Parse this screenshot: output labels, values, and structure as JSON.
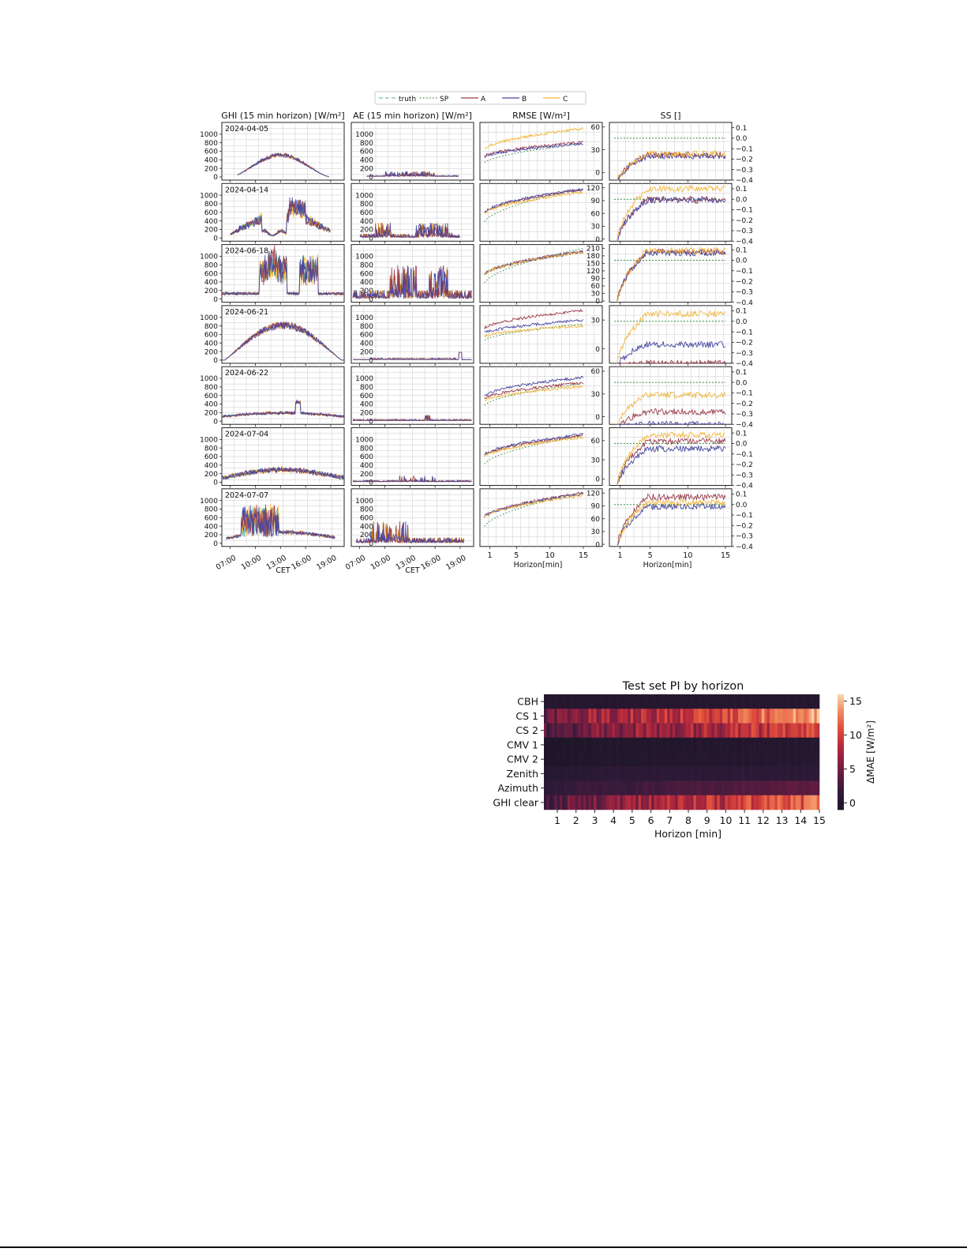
{
  "chart_data": [
    {
      "type": "line",
      "legend": {
        "placement": "top-center",
        "entries": [
          {
            "name": "truth",
            "color": "#7fb8b0",
            "style": "dashed"
          },
          {
            "name": "SP",
            "color": "#2e8b3e",
            "style": "dotted"
          },
          {
            "name": "A",
            "color": "#9b3d4c",
            "style": "solid"
          },
          {
            "name": "B",
            "color": "#4848a0",
            "style": "solid"
          },
          {
            "name": "C",
            "color": "#f2b63c",
            "style": "solid"
          }
        ]
      },
      "column_titles": [
        "GHI (15 min horizon) [W/m²]",
        "AE (15 min horizon) [W/m²]",
        "RMSE [W/m²]",
        "SS []"
      ],
      "dates": [
        "2024-04-05",
        "2024-04-14",
        "2024-06-18",
        "2024-06-21",
        "2024-06-22",
        "2024-07-04",
        "2024-07-07"
      ],
      "timeseries_axis": {
        "xlabel": "CET",
        "ticks": [
          "07:00",
          "10:00",
          "13:00",
          "16:00",
          "19:00"
        ],
        "yticks": [
          "0",
          "200",
          "400",
          "600",
          "800",
          "1000"
        ],
        "ylim": [
          0,
          1200
        ]
      },
      "horizon_axis": {
        "xlabel": "Horizon[min]",
        "ticks": [
          "1",
          "5",
          "10",
          "15"
        ],
        "xlim": [
          0,
          15
        ]
      },
      "rmse_yticks": [
        [
          "0",
          "30",
          "60"
        ],
        [
          "0",
          "30",
          "60",
          "90",
          "120"
        ],
        [
          "0",
          "30",
          "60",
          "90",
          "120",
          "150",
          "180",
          "210"
        ],
        [
          "0",
          "30"
        ],
        [
          "0",
          "30",
          "60"
        ],
        [
          "0",
          "30",
          "60"
        ],
        [
          "0",
          "30",
          "60",
          "90",
          "120"
        ]
      ],
      "rmse_ranges": [
        [
          -10,
          66
        ],
        [
          -5,
          130
        ],
        [
          -5,
          225
        ],
        [
          -15,
          45
        ],
        [
          -10,
          66
        ],
        [
          -10,
          80
        ],
        [
          -5,
          130
        ]
      ],
      "ss_yticks": [
        "−0.4",
        "−0.3",
        "−0.2",
        "−0.1",
        "0.0",
        "0.1"
      ],
      "ss_range": [
        -0.4,
        0.15
      ],
      "rmse_final": [
        {
          "SP": 38,
          "A": 40,
          "B": 38,
          "C": 58
        },
        {
          "SP": 118,
          "A": 116,
          "B": 117,
          "C": 110
        },
        {
          "SP": 210,
          "A": 198,
          "B": 196,
          "C": 195
        },
        {
          "SP": 26,
          "A": 40,
          "B": 30,
          "C": 24
        },
        {
          "SP": 44,
          "A": 45,
          "B": 52,
          "C": 40
        },
        {
          "SP": 68,
          "A": 68,
          "B": 70,
          "C": 65
        },
        {
          "SP": 122,
          "A": 120,
          "B": 118,
          "C": 115
        }
      ],
      "ss_final": [
        {
          "A": -0.16,
          "B": -0.17,
          "C": -0.15
        },
        {
          "A": 0.0,
          "B": -0.01,
          "C": 0.1
        },
        {
          "A": 0.08,
          "B": 0.07,
          "C": 0.09
        },
        {
          "A": -0.4,
          "B": -0.22,
          "C": 0.07
        },
        {
          "A": -0.28,
          "B": -0.4,
          "C": -0.12
        },
        {
          "A": 0.02,
          "B": -0.05,
          "C": 0.08
        },
        {
          "A": 0.07,
          "B": -0.02,
          "C": 0.02
        }
      ]
    },
    {
      "type": "heatmap",
      "title": "Test set PI by horizon",
      "xlabel": "Horizon [min]",
      "xticks": [
        "1",
        "2",
        "3",
        "4",
        "5",
        "6",
        "7",
        "8",
        "9",
        "10",
        "11",
        "12",
        "13",
        "14",
        "15"
      ],
      "rows": [
        "CBH",
        "CS 1",
        "CS 2",
        "CMV 1",
        "CMV 2",
        "Zenith",
        "Azimuth",
        "GHI clear"
      ],
      "colorbar": {
        "label": "ΔMAE [W/m²]",
        "ticks": [
          "0",
          "5",
          "10",
          "15"
        ],
        "range": [
          -1,
          16
        ]
      },
      "row_levels": [
        [
          0,
          0,
          0,
          0,
          0,
          0,
          0,
          0,
          0,
          0,
          0,
          0,
          0,
          0,
          0
        ],
        [
          4,
          6,
          7,
          7,
          8,
          8,
          9,
          9,
          10,
          10,
          11,
          12,
          12,
          13,
          14
        ],
        [
          3,
          4,
          5,
          6,
          6,
          7,
          7,
          7,
          8,
          8,
          9,
          9,
          10,
          10,
          11
        ],
        [
          -1,
          -1,
          -0.5,
          -0.5,
          -0.5,
          -0.5,
          -0.5,
          -0.5,
          -0.3,
          -0.3,
          -0.3,
          -0.2,
          -0.2,
          -0.1,
          0
        ],
        [
          -1,
          -1,
          -0.5,
          -0.5,
          -0.5,
          -0.3,
          -0.3,
          -0.3,
          -0.2,
          -0.2,
          -0.2,
          -0.1,
          -0.1,
          0,
          0
        ],
        [
          0,
          0.5,
          0.5,
          1,
          1,
          1,
          1,
          1,
          1,
          1,
          1,
          1,
          1,
          1,
          1
        ],
        [
          1,
          1.5,
          2,
          2,
          2,
          2.5,
          2.5,
          3,
          3,
          3,
          3.5,
          3.5,
          4,
          4,
          4
        ],
        [
          3,
          4,
          5,
          6,
          7,
          7,
          8,
          8,
          9,
          9,
          10,
          10,
          11,
          11,
          12
        ]
      ]
    }
  ]
}
